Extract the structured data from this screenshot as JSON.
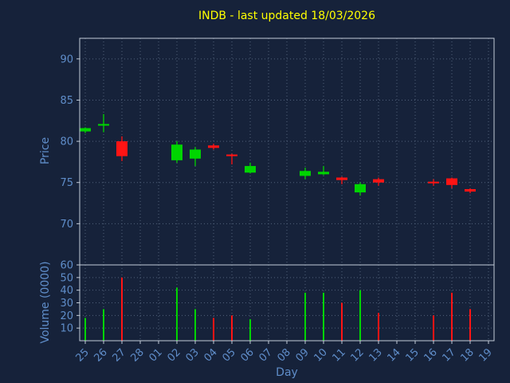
{
  "chart_data": {
    "type": "candlestick",
    "title": "INDB - last updated 18/03/2026",
    "xlabel": "Day",
    "ylabel_price": "Price",
    "ylabel_volume": "Volume (0000)",
    "x_categories": [
      "25",
      "26",
      "27",
      "28",
      "01",
      "02",
      "03",
      "04",
      "05",
      "06",
      "07",
      "08",
      "09",
      "10",
      "11",
      "12",
      "13",
      "14",
      "15",
      "16",
      "17",
      "18",
      "19"
    ],
    "x_tick_rotation": 45,
    "grid": true,
    "legend": false,
    "price_ylim": [
      65,
      92.5
    ],
    "price_ticks": [
      70,
      75,
      80,
      85,
      90
    ],
    "volume_ylim": [
      0,
      60
    ],
    "volume_ticks": [
      10,
      20,
      30,
      40,
      50,
      60
    ],
    "candles": [
      {
        "day": "25",
        "open": 81.2,
        "high": 81.7,
        "low": 81.0,
        "close": 81.6,
        "dir": "up"
      },
      {
        "day": "26",
        "open": 81.9,
        "high": 83.3,
        "low": 81.1,
        "close": 82.1,
        "dir": "up"
      },
      {
        "day": "27",
        "open": 80.0,
        "high": 80.6,
        "low": 77.6,
        "close": 78.2,
        "dir": "down"
      },
      {
        "day": "02",
        "open": 77.7,
        "high": 80.0,
        "low": 77.4,
        "close": 79.6,
        "dir": "up"
      },
      {
        "day": "03",
        "open": 77.9,
        "high": 79.3,
        "low": 77.0,
        "close": 79.0,
        "dir": "up"
      },
      {
        "day": "04",
        "open": 79.5,
        "high": 79.7,
        "low": 79.0,
        "close": 79.2,
        "dir": "down"
      },
      {
        "day": "05",
        "open": 78.4,
        "high": 78.5,
        "low": 77.2,
        "close": 78.2,
        "dir": "down"
      },
      {
        "day": "06",
        "open": 76.2,
        "high": 77.4,
        "low": 76.1,
        "close": 77.0,
        "dir": "up"
      },
      {
        "day": "09",
        "open": 75.8,
        "high": 76.8,
        "low": 75.4,
        "close": 76.4,
        "dir": "up"
      },
      {
        "day": "10",
        "open": 76.0,
        "high": 77.0,
        "low": 75.9,
        "close": 76.3,
        "dir": "up"
      },
      {
        "day": "11",
        "open": 75.6,
        "high": 75.7,
        "low": 74.8,
        "close": 75.3,
        "dir": "down"
      },
      {
        "day": "12",
        "open": 73.8,
        "high": 75.0,
        "low": 73.4,
        "close": 74.8,
        "dir": "up"
      },
      {
        "day": "13",
        "open": 75.4,
        "high": 75.6,
        "low": 74.6,
        "close": 75.0,
        "dir": "down"
      },
      {
        "day": "16",
        "open": 75.1,
        "high": 75.4,
        "low": 74.6,
        "close": 74.9,
        "dir": "down"
      },
      {
        "day": "17",
        "open": 75.5,
        "high": 75.6,
        "low": 74.3,
        "close": 74.7,
        "dir": "down"
      },
      {
        "day": "18",
        "open": 74.2,
        "high": 74.3,
        "low": 73.7,
        "close": 73.9,
        "dir": "down"
      }
    ],
    "volumes": [
      {
        "day": "25",
        "value": 18,
        "dir": "up"
      },
      {
        "day": "26",
        "value": 25,
        "dir": "up"
      },
      {
        "day": "27",
        "value": 50,
        "dir": "down"
      },
      {
        "day": "02",
        "value": 42,
        "dir": "up"
      },
      {
        "day": "03",
        "value": 25,
        "dir": "up"
      },
      {
        "day": "04",
        "value": 18,
        "dir": "down"
      },
      {
        "day": "05",
        "value": 20,
        "dir": "down"
      },
      {
        "day": "06",
        "value": 17,
        "dir": "up"
      },
      {
        "day": "09",
        "value": 38,
        "dir": "up"
      },
      {
        "day": "10",
        "value": 38,
        "dir": "up"
      },
      {
        "day": "11",
        "value": 30,
        "dir": "down"
      },
      {
        "day": "12",
        "value": 40,
        "dir": "up"
      },
      {
        "day": "13",
        "value": 22,
        "dir": "down"
      },
      {
        "day": "16",
        "value": 20,
        "dir": "down"
      },
      {
        "day": "17",
        "value": 38,
        "dir": "down"
      },
      {
        "day": "18",
        "value": 25,
        "dir": "down"
      }
    ],
    "colors": {
      "up": "#00d500",
      "down": "#ff1414",
      "grid": "#51617b",
      "spine": "#c3ccd8",
      "tick_label": "#5f8dc9",
      "axis_label": "#5f8dc9",
      "title": "#ffff00",
      "background": "#16223a"
    }
  }
}
